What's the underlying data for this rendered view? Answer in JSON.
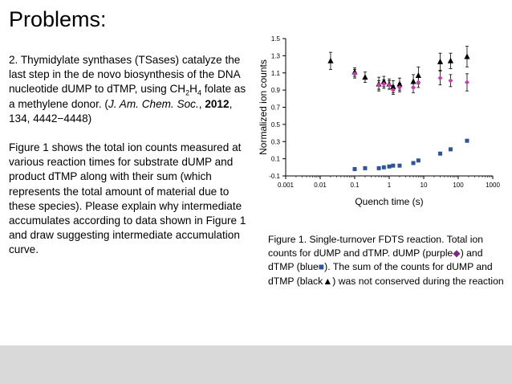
{
  "slide": {
    "title": "Problems:",
    "paragraph1": {
      "part1": "2. Thymidylate synthases (TSases) catalyze the last step in the de novo biosynthesis of the DNA nucleotide dUMP to dTMP, using CH",
      "sub1": "2",
      "part2": "H",
      "sub2": "4",
      "part3": " folate as a methylene donor. (",
      "journal": "J. Am. Chem. Soc.",
      "part4": ", ",
      "year": "2012",
      "part5": ", 134, 4442−4448)"
    },
    "paragraph2": "Figure 1 shows the total ion counts measured at various reaction times for substrate dUMP and product dTMP along with their sum (which represents the total amount of material due to these species). Please explain why intermediate accumulates according to data shown in Figure 1 and draw suggesting intermediate accumulation curve.",
    "caption": {
      "part1": "Figure 1. Single-turnover FDTS reaction. Total ion counts for dUMP and dTMP. dUMP (purple",
      "diamond": "◆",
      "part2": ") and dTMP (blue",
      "square": "■",
      "part3": "). The sum of the counts for dUMP and dTMP (black",
      "triangle": "▲",
      "part4": ") was not conserved during the reaction"
    }
  },
  "chart_data": {
    "type": "scatter",
    "xlabel": "Quench time (s)",
    "ylabel": "Normalized ion counts",
    "xscale": "log",
    "xlim": [
      0.001,
      1000
    ],
    "ylim": [
      -0.1,
      1.5
    ],
    "xticks": [
      0.001,
      0.01,
      0.1,
      1,
      10,
      100,
      1000
    ],
    "xtick_labels": [
      "0.001",
      "0.01",
      "0.1",
      "1",
      "10",
      "100",
      "1000"
    ],
    "yticks": [
      -0.1,
      0.1,
      0.3,
      0.5,
      0.7,
      0.9,
      1.1,
      1.3,
      1.5
    ],
    "ytick_labels": [
      "-0.1",
      "0.1",
      "0.3",
      "0.5",
      "0.7",
      "0.9",
      "1.1",
      "1.3",
      "1.5"
    ],
    "grid": false,
    "series": [
      {
        "marker": "triangle",
        "color": "#000000",
        "points": [
          {
            "x": 0.02,
            "y": 1.24,
            "err": 0.1
          },
          {
            "x": 0.1,
            "y": 1.11,
            "err": 0.05
          },
          {
            "x": 0.2,
            "y": 1.05,
            "err": 0.06
          },
          {
            "x": 0.5,
            "y": 0.97,
            "err": 0.08
          },
          {
            "x": 0.7,
            "y": 1.0,
            "err": 0.06
          },
          {
            "x": 1.0,
            "y": 0.97,
            "err": 0.06
          },
          {
            "x": 1.3,
            "y": 0.94,
            "err": 0.07
          },
          {
            "x": 2.0,
            "y": 0.97,
            "err": 0.07
          },
          {
            "x": 5.0,
            "y": 1.0,
            "err": 0.08
          },
          {
            "x": 7.0,
            "y": 1.07,
            "err": 0.1
          },
          {
            "x": 30,
            "y": 1.23,
            "err": 0.1
          },
          {
            "x": 60,
            "y": 1.24,
            "err": 0.09
          },
          {
            "x": 180,
            "y": 1.29,
            "err": 0.12
          }
        ]
      },
      {
        "marker": "diamond",
        "color": "#c040a8",
        "points": [
          {
            "x": 0.1,
            "y": 1.09,
            "err": 0.05
          },
          {
            "x": 0.5,
            "y": 0.96,
            "err": 0.05
          },
          {
            "x": 0.7,
            "y": 0.97,
            "err": 0.05
          },
          {
            "x": 1.0,
            "y": 0.96,
            "err": 0.05
          },
          {
            "x": 1.3,
            "y": 0.9,
            "err": 0.05
          },
          {
            "x": 2.0,
            "y": 0.93,
            "err": 0.05
          },
          {
            "x": 5.0,
            "y": 0.93,
            "err": 0.06
          },
          {
            "x": 7.0,
            "y": 0.99,
            "err": 0.06
          },
          {
            "x": 30,
            "y": 1.04,
            "err": 0.08
          },
          {
            "x": 60,
            "y": 1.01,
            "err": 0.07
          },
          {
            "x": 180,
            "y": 0.99,
            "err": 0.1
          }
        ]
      },
      {
        "marker": "square",
        "color": "#2f5597",
        "points": [
          {
            "x": 0.1,
            "y": -0.02
          },
          {
            "x": 0.2,
            "y": -0.01
          },
          {
            "x": 0.5,
            "y": -0.01
          },
          {
            "x": 0.7,
            "y": 0.0
          },
          {
            "x": 1.0,
            "y": 0.01
          },
          {
            "x": 1.3,
            "y": 0.02
          },
          {
            "x": 2.0,
            "y": 0.02
          },
          {
            "x": 5.0,
            "y": 0.05
          },
          {
            "x": 7.0,
            "y": 0.08
          },
          {
            "x": 30,
            "y": 0.16
          },
          {
            "x": 60,
            "y": 0.21
          },
          {
            "x": 180,
            "y": 0.31
          }
        ]
      }
    ]
  }
}
